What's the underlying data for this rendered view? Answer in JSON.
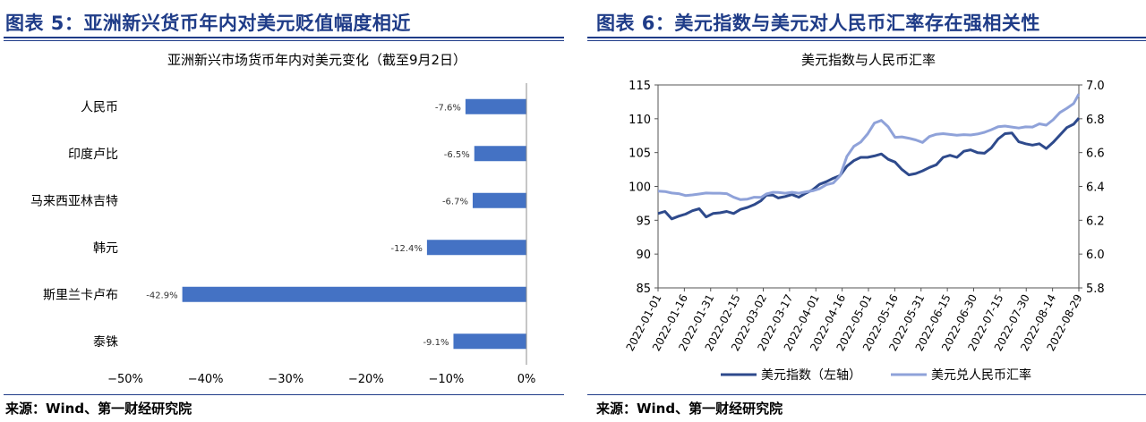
{
  "left": {
    "figure_title": "图表 5：亚洲新兴货币年内对美元贬值幅度相近",
    "source": "来源：Wind、第一财经研究院",
    "chart_data": {
      "type": "bar",
      "orientation": "horizontal",
      "title": "亚洲新兴市场货币年内对美元变化（截至9月2日）",
      "categories": [
        "人民币",
        "印度卢比",
        "马来西亚林吉特",
        "韩元",
        "斯里兰卡卢布",
        "泰铢"
      ],
      "values": [
        -7.6,
        -6.5,
        -6.7,
        -12.4,
        -42.9,
        -9.1
      ],
      "value_labels": [
        "-7.6%",
        "-6.5%",
        "-6.7%",
        "-12.4%",
        "-42.9%",
        "-9.1%"
      ],
      "xlim": [
        -50,
        0
      ],
      "x_ticks": [
        -50,
        -40,
        -30,
        -20,
        -10,
        0
      ],
      "x_tick_labels": [
        "−50%",
        "−40%",
        "−30%",
        "−20%",
        "−10%",
        "0%"
      ],
      "bar_color": "#4472c4",
      "grid": false
    }
  },
  "right": {
    "figure_title": "图表 6：美元指数与美元对人民币汇率存在强相关性",
    "source": "来源：Wind、第一财经研究院",
    "chart_data": {
      "type": "line",
      "title": "美元指数与人民币汇率",
      "x_tick_labels": [
        "2022-01-01",
        "2022-01-16",
        "2022-01-31",
        "2022-02-15",
        "2022-03-02",
        "2022-03-17",
        "2022-04-01",
        "2022-04-16",
        "2022-05-01",
        "2022-05-16",
        "2022-05-31",
        "2022-06-15",
        "2022-06-30",
        "2022-07-15",
        "2022-07-30",
        "2022-08-14",
        "2022-08-29"
      ],
      "x_range_days": [
        0,
        245
      ],
      "y_left_lim": [
        85,
        115
      ],
      "y_left_ticks": [
        85,
        90,
        95,
        100,
        105,
        110,
        115
      ],
      "y_right_lim": [
        5.8,
        7.0
      ],
      "y_right_ticks": [
        "5.8",
        "6.0",
        "6.2",
        "6.4",
        "6.6",
        "6.8",
        "7.0"
      ],
      "legend_position": "bottom",
      "grid": false,
      "series": [
        {
          "name": "美元指数（左轴）",
          "axis": "left",
          "color": "#2e4a8c",
          "points": [
            [
              0,
              96.0
            ],
            [
              4,
              96.3
            ],
            [
              8,
              95.2
            ],
            [
              12,
              95.6
            ],
            [
              16,
              95.9
            ],
            [
              20,
              96.4
            ],
            [
              24,
              96.7
            ],
            [
              28,
              95.5
            ],
            [
              32,
              96.0
            ],
            [
              36,
              96.1
            ],
            [
              40,
              96.3
            ],
            [
              44,
              96.0
            ],
            [
              48,
              96.6
            ],
            [
              52,
              96.9
            ],
            [
              56,
              97.3
            ],
            [
              60,
              97.9
            ],
            [
              63,
              98.7
            ],
            [
              67,
              98.7
            ],
            [
              70,
              98.3
            ],
            [
              74,
              98.5
            ],
            [
              78,
              98.8
            ],
            [
              82,
              98.4
            ],
            [
              86,
              99.0
            ],
            [
              90,
              99.5
            ],
            [
              94,
              100.3
            ],
            [
              98,
              100.7
            ],
            [
              102,
              101.2
            ],
            [
              106,
              101.6
            ],
            [
              110,
              103.0
            ],
            [
              114,
              103.8
            ],
            [
              118,
              104.3
            ],
            [
              122,
              104.3
            ],
            [
              126,
              104.5
            ],
            [
              130,
              104.8
            ],
            [
              134,
              104.0
            ],
            [
              138,
              103.6
            ],
            [
              142,
              102.5
            ],
            [
              146,
              101.7
            ],
            [
              150,
              101.9
            ],
            [
              154,
              102.3
            ],
            [
              158,
              102.8
            ],
            [
              162,
              103.2
            ],
            [
              166,
              104.3
            ],
            [
              170,
              104.6
            ],
            [
              174,
              104.3
            ],
            [
              178,
              105.2
            ],
            [
              182,
              105.4
            ],
            [
              186,
              105.0
            ],
            [
              190,
              104.9
            ],
            [
              194,
              105.7
            ],
            [
              198,
              107.0
            ],
            [
              202,
              107.8
            ],
            [
              206,
              107.9
            ],
            [
              210,
              106.6
            ],
            [
              214,
              106.3
            ],
            [
              218,
              106.1
            ],
            [
              222,
              106.3
            ],
            [
              226,
              105.6
            ],
            [
              230,
              106.5
            ],
            [
              234,
              107.6
            ],
            [
              238,
              108.7
            ],
            [
              242,
              109.2
            ],
            [
              245,
              110.1
            ]
          ]
        },
        {
          "name": "美元兑人民币汇率",
          "axis": "right",
          "color": "#8fa2d9",
          "points": [
            [
              0,
              6.372
            ],
            [
              4,
              6.37
            ],
            [
              8,
              6.361
            ],
            [
              12,
              6.357
            ],
            [
              16,
              6.346
            ],
            [
              20,
              6.35
            ],
            [
              24,
              6.355
            ],
            [
              28,
              6.361
            ],
            [
              32,
              6.36
            ],
            [
              36,
              6.36
            ],
            [
              40,
              6.357
            ],
            [
              44,
              6.336
            ],
            [
              48,
              6.322
            ],
            [
              52,
              6.325
            ],
            [
              56,
              6.336
            ],
            [
              60,
              6.335
            ],
            [
              63,
              6.355
            ],
            [
              67,
              6.365
            ],
            [
              70,
              6.364
            ],
            [
              74,
              6.36
            ],
            [
              78,
              6.365
            ],
            [
              82,
              6.36
            ],
            [
              86,
              6.368
            ],
            [
              90,
              6.374
            ],
            [
              94,
              6.386
            ],
            [
              98,
              6.41
            ],
            [
              102,
              6.42
            ],
            [
              106,
              6.463
            ],
            [
              110,
              6.578
            ],
            [
              114,
              6.637
            ],
            [
              118,
              6.662
            ],
            [
              122,
              6.71
            ],
            [
              126,
              6.775
            ],
            [
              130,
              6.79
            ],
            [
              134,
              6.752
            ],
            [
              138,
              6.69
            ],
            [
              142,
              6.693
            ],
            [
              146,
              6.685
            ],
            [
              150,
              6.675
            ],
            [
              154,
              6.66
            ],
            [
              158,
              6.695
            ],
            [
              162,
              6.708
            ],
            [
              166,
              6.712
            ],
            [
              170,
              6.707
            ],
            [
              174,
              6.703
            ],
            [
              178,
              6.706
            ],
            [
              182,
              6.704
            ],
            [
              186,
              6.71
            ],
            [
              190,
              6.72
            ],
            [
              194,
              6.735
            ],
            [
              198,
              6.753
            ],
            [
              202,
              6.757
            ],
            [
              206,
              6.751
            ],
            [
              210,
              6.745
            ],
            [
              214,
              6.752
            ],
            [
              218,
              6.751
            ],
            [
              222,
              6.77
            ],
            [
              226,
              6.762
            ],
            [
              230,
              6.794
            ],
            [
              234,
              6.837
            ],
            [
              238,
              6.862
            ],
            [
              242,
              6.89
            ],
            [
              245,
              6.946
            ]
          ]
        }
      ]
    }
  }
}
